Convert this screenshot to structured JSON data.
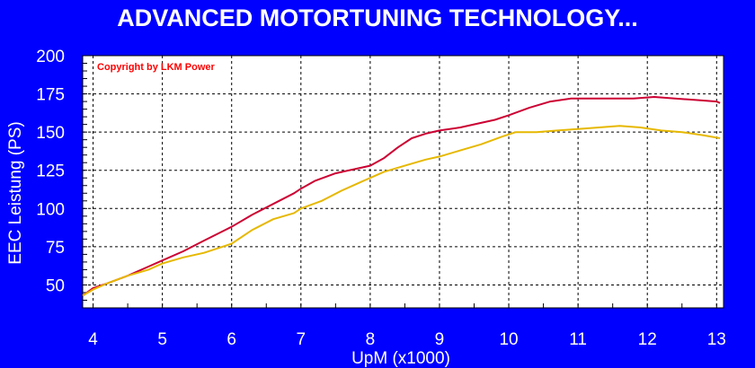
{
  "chart_data": {
    "type": "line",
    "title": "ADVANCED MOTORTUNING TECHNOLOGY...",
    "annotation": "Copyright by LKM Power",
    "xlabel": "UpM (x1000)",
    "ylabel": "EEC Leistung (PS)",
    "xlim": [
      3.85,
      13.1
    ],
    "ylim": [
      35,
      200
    ],
    "xticks": [
      "4",
      "5",
      "6",
      "7",
      "8",
      "9",
      "10",
      "11",
      "12",
      "13"
    ],
    "yticks": [
      "50",
      "75",
      "100",
      "125",
      "150",
      "175",
      "200"
    ],
    "grid": true,
    "background_color": "#ffffff",
    "page_color": "#0000ff",
    "series": [
      {
        "color": "#cc0033",
        "x": [
          3.85,
          4.0,
          4.2,
          4.5,
          4.8,
          5.0,
          5.3,
          5.6,
          6.0,
          6.3,
          6.6,
          6.9,
          7.0,
          7.2,
          7.5,
          7.8,
          8.0,
          8.2,
          8.4,
          8.6,
          8.8,
          9.0,
          9.3,
          9.6,
          9.8,
          10.0,
          10.3,
          10.6,
          10.9,
          11.2,
          11.5,
          11.8,
          12.1,
          12.4,
          12.7,
          13.0,
          13.05
        ],
        "y": [
          43,
          48,
          51,
          56,
          62,
          66,
          72,
          79,
          88,
          96,
          103,
          110,
          113,
          118,
          123,
          126,
          128,
          133,
          140,
          146,
          149,
          151,
          153,
          156,
          158,
          161,
          166,
          170,
          172,
          172,
          172,
          172,
          173,
          172,
          171,
          170,
          169
        ]
      },
      {
        "color": "#e6b800",
        "x": [
          3.85,
          4.0,
          4.2,
          4.5,
          4.8,
          5.0,
          5.3,
          5.6,
          6.0,
          6.3,
          6.6,
          6.9,
          7.0,
          7.3,
          7.6,
          7.9,
          8.2,
          8.5,
          8.8,
          9.0,
          9.3,
          9.6,
          9.9,
          10.1,
          10.4,
          10.7,
          11.0,
          11.3,
          11.6,
          11.9,
          12.2,
          12.5,
          12.8,
          13.05
        ],
        "y": [
          43,
          47,
          51,
          56,
          60,
          64,
          68,
          71,
          77,
          86,
          93,
          97,
          100,
          105,
          112,
          118,
          124,
          128,
          132,
          134,
          138,
          142,
          147,
          150,
          150,
          151,
          152,
          153,
          154,
          153,
          151,
          150,
          148,
          146
        ]
      }
    ]
  }
}
